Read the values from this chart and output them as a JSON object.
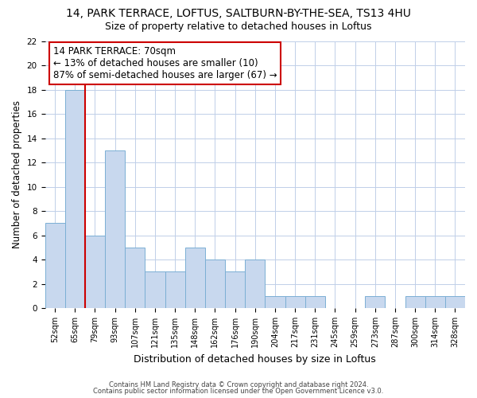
{
  "title": "14, PARK TERRACE, LOFTUS, SALTBURN-BY-THE-SEA, TS13 4HU",
  "subtitle": "Size of property relative to detached houses in Loftus",
  "xlabel": "Distribution of detached houses by size in Loftus",
  "ylabel": "Number of detached properties",
  "bar_labels": [
    "52sqm",
    "65sqm",
    "79sqm",
    "93sqm",
    "107sqm",
    "121sqm",
    "135sqm",
    "148sqm",
    "162sqm",
    "176sqm",
    "190sqm",
    "204sqm",
    "217sqm",
    "231sqm",
    "245sqm",
    "259sqm",
    "273sqm",
    "287sqm",
    "300sqm",
    "314sqm",
    "328sqm"
  ],
  "bar_values": [
    7,
    18,
    6,
    13,
    5,
    3,
    3,
    5,
    4,
    3,
    4,
    1,
    1,
    1,
    0,
    0,
    1,
    0,
    1,
    1,
    1
  ],
  "bar_color": "#c8d8ee",
  "bar_edge_color": "#7bafd4",
  "vline_color": "#cc0000",
  "vline_x_index": 1.5,
  "annotation_title": "14 PARK TERRACE: 70sqm",
  "annotation_line1": "← 13% of detached houses are smaller (10)",
  "annotation_line2": "87% of semi-detached houses are larger (67) →",
  "annotation_box_color": "#ffffff",
  "annotation_box_edge": "#cc0000",
  "ylim": [
    0,
    22
  ],
  "yticks": [
    0,
    2,
    4,
    6,
    8,
    10,
    12,
    14,
    16,
    18,
    20,
    22
  ],
  "footer1": "Contains HM Land Registry data © Crown copyright and database right 2024.",
  "footer2": "Contains public sector information licensed under the Open Government Licence v3.0.",
  "bg_color": "#ffffff",
  "grid_color": "#c0cfe8",
  "title_fontsize": 10,
  "subtitle_fontsize": 9,
  "tick_fontsize": 7,
  "ylabel_fontsize": 8.5,
  "xlabel_fontsize": 9,
  "annotation_fontsize": 8.5
}
